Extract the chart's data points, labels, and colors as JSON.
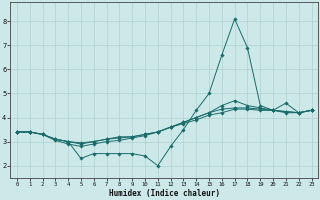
{
  "title": "",
  "xlabel": "Humidex (Indice chaleur)",
  "bg_color": "#cce8e8",
  "grid_color": "#b0d0d0",
  "line_color": "#1a6b6b",
  "xlim": [
    -0.5,
    23.5
  ],
  "ylim": [
    1.5,
    8.8
  ],
  "xticks": [
    0,
    1,
    2,
    3,
    4,
    5,
    6,
    7,
    8,
    9,
    10,
    11,
    12,
    13,
    14,
    15,
    16,
    17,
    18,
    19,
    20,
    21,
    22,
    23
  ],
  "yticks": [
    2,
    3,
    4,
    5,
    6,
    7,
    8
  ],
  "line1_x": [
    0,
    1,
    2,
    3,
    4,
    5,
    6,
    7,
    8,
    9,
    10,
    11,
    12,
    13,
    14,
    15,
    16,
    17,
    18,
    19,
    20,
    21,
    22,
    23
  ],
  "line1_y": [
    3.4,
    3.4,
    3.3,
    3.1,
    3.0,
    2.3,
    2.5,
    2.5,
    2.5,
    2.5,
    2.4,
    2.0,
    2.8,
    3.5,
    4.3,
    5.0,
    6.6,
    8.1,
    6.9,
    4.5,
    4.3,
    4.6,
    4.2,
    4.3
  ],
  "line2_x": [
    0,
    1,
    2,
    3,
    4,
    5,
    6,
    7,
    8,
    9,
    10,
    11,
    12,
    13,
    14,
    15,
    16,
    17,
    18,
    19,
    20,
    21,
    22,
    23
  ],
  "line2_y": [
    3.4,
    3.4,
    3.3,
    3.1,
    3.0,
    2.9,
    3.0,
    3.1,
    3.2,
    3.2,
    3.3,
    3.4,
    3.6,
    3.8,
    4.0,
    4.2,
    4.35,
    4.4,
    4.4,
    4.35,
    4.3,
    4.25,
    4.2,
    4.3
  ],
  "line3_x": [
    0,
    1,
    2,
    3,
    4,
    5,
    6,
    7,
    8,
    9,
    10,
    11,
    12,
    13,
    14,
    15,
    16,
    17,
    18,
    19,
    20,
    21,
    22,
    23
  ],
  "line3_y": [
    3.4,
    3.4,
    3.3,
    3.1,
    3.0,
    2.95,
    3.0,
    3.1,
    3.15,
    3.2,
    3.3,
    3.4,
    3.6,
    3.75,
    3.9,
    4.1,
    4.2,
    4.35,
    4.35,
    4.3,
    4.3,
    4.25,
    4.2,
    4.3
  ],
  "line4_x": [
    0,
    1,
    2,
    3,
    4,
    5,
    6,
    7,
    8,
    9,
    10,
    11,
    12,
    13,
    14,
    15,
    16,
    17,
    18,
    19,
    20,
    21,
    22,
    23
  ],
  "line4_y": [
    3.4,
    3.4,
    3.3,
    3.05,
    2.9,
    2.8,
    2.9,
    3.0,
    3.05,
    3.15,
    3.25,
    3.4,
    3.6,
    3.8,
    4.0,
    4.2,
    4.5,
    4.7,
    4.5,
    4.4,
    4.3,
    4.2,
    4.2,
    4.3
  ]
}
